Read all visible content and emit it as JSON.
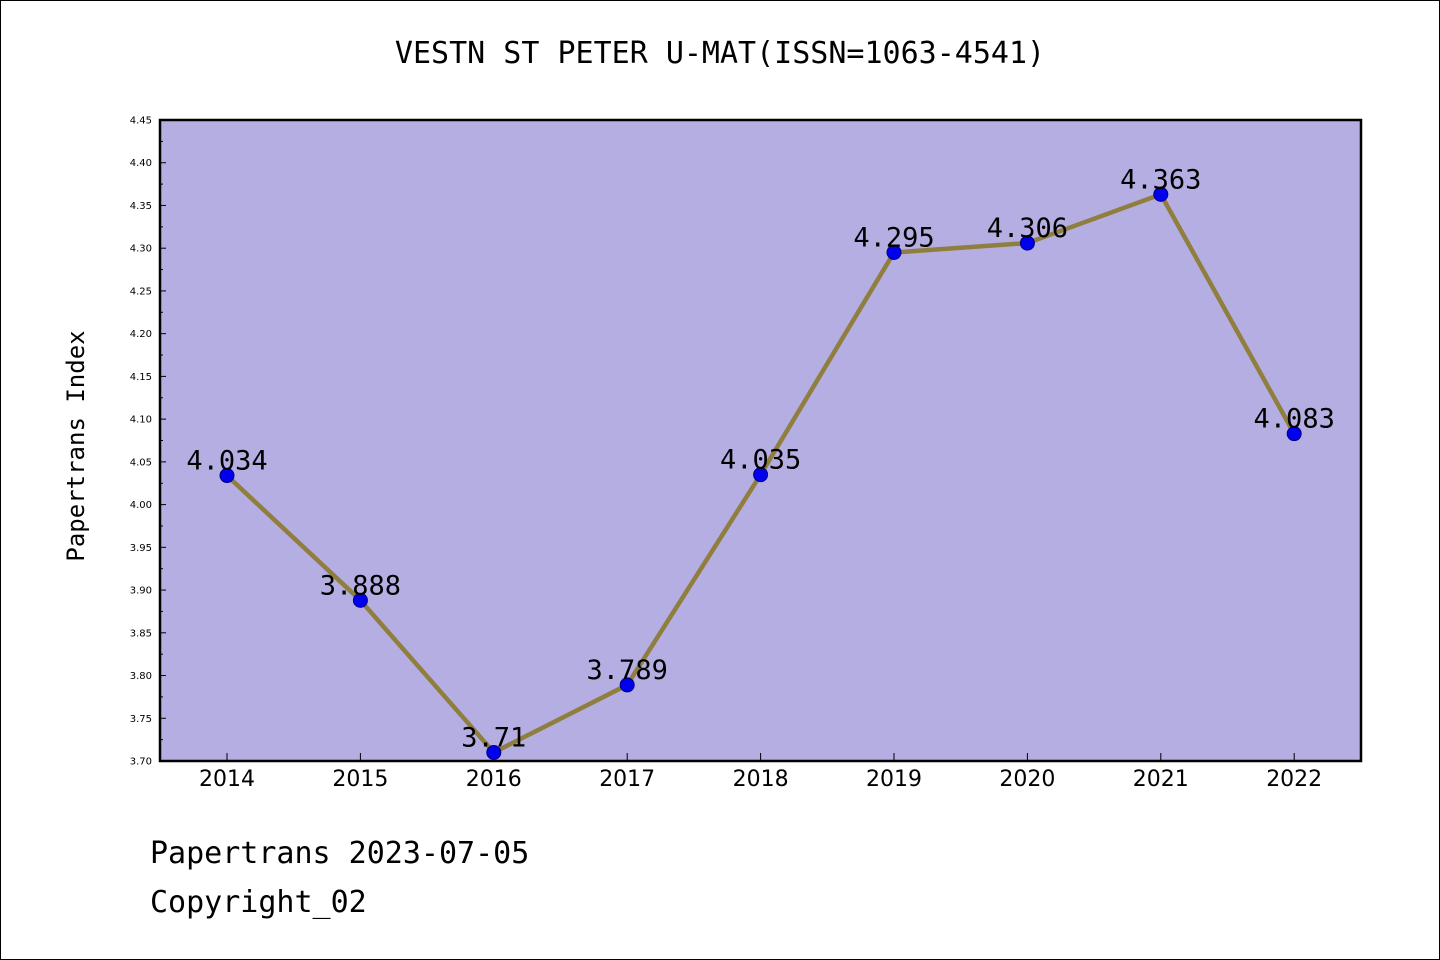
{
  "chart_data": {
    "type": "line",
    "title": "VESTN ST PETER U-MAT(ISSN=1063-4541)",
    "ylabel": "Papertrans Index",
    "xlabel": "",
    "categories": [
      "2014",
      "2015",
      "2016",
      "2017",
      "2018",
      "2019",
      "2020",
      "2021",
      "2022"
    ],
    "values": [
      4.034,
      3.888,
      3.71,
      3.789,
      4.035,
      4.295,
      4.306,
      4.363,
      4.083
    ],
    "data_labels": [
      "4.034",
      "3.888",
      "3.71",
      "3.789",
      "4.035",
      "4.295",
      "4.306",
      "4.363",
      "4.083"
    ],
    "ylim": [
      3.7,
      4.45
    ],
    "yticks": [
      "3.70",
      "3.75",
      "3.80",
      "3.85",
      "3.90",
      "3.95",
      "4.00",
      "4.05",
      "4.10",
      "4.15",
      "4.20",
      "4.25",
      "4.30",
      "4.35",
      "4.40",
      "4.45"
    ],
    "grid": false,
    "legend": "none",
    "colors": {
      "plot_background": "#b5aee2",
      "line": "#8f7e3e",
      "marker": "#0000ee",
      "marker_edge": "#000080"
    }
  },
  "footer": {
    "date_line": "Papertrans 2023-07-05",
    "copyright_line": "Copyright_02"
  }
}
